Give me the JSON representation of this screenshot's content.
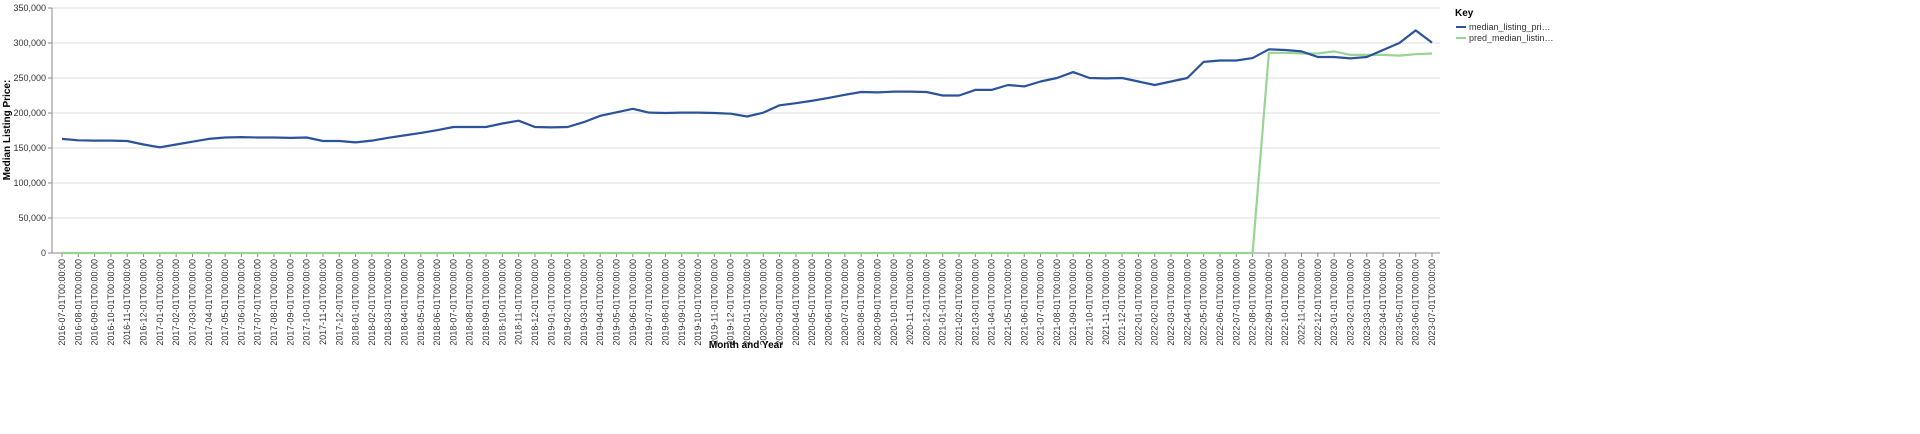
{
  "chart_data": {
    "type": "line",
    "y_label": "Median Listing Price:",
    "x_label": "Month and Year",
    "legend_title": "Key",
    "legend_position": "right",
    "grid": true,
    "categories": [
      "2016-07-01T00:00:00",
      "2016-08-01T00:00:00",
      "2016-09-01T00:00:00",
      "2016-10-01T00:00:00",
      "2016-11-01T00:00:00",
      "2016-12-01T00:00:00",
      "2017-01-01T00:00:00",
      "2017-02-01T00:00:00",
      "2017-03-01T00:00:00",
      "2017-04-01T00:00:00",
      "2017-05-01T00:00:00",
      "2017-06-01T00:00:00",
      "2017-07-01T00:00:00",
      "2017-08-01T00:00:00",
      "2017-09-01T00:00:00",
      "2017-10-01T00:00:00",
      "2017-11-01T00:00:00",
      "2017-12-01T00:00:00",
      "2018-01-01T00:00:00",
      "2018-02-01T00:00:00",
      "2018-03-01T00:00:00",
      "2018-04-01T00:00:00",
      "2018-05-01T00:00:00",
      "2018-06-01T00:00:00",
      "2018-07-01T00:00:00",
      "2018-08-01T00:00:00",
      "2018-09-01T00:00:00",
      "2018-10-01T00:00:00",
      "2018-11-01T00:00:00",
      "2018-12-01T00:00:00",
      "2019-01-01T00:00:00",
      "2019-02-01T00:00:00",
      "2019-03-01T00:00:00",
      "2019-04-01T00:00:00",
      "2019-05-01T00:00:00",
      "2019-06-01T00:00:00",
      "2019-07-01T00:00:00",
      "2019-08-01T00:00:00",
      "2019-09-01T00:00:00",
      "2019-10-01T00:00:00",
      "2019-11-01T00:00:00",
      "2019-12-01T00:00:00",
      "2020-01-01T00:00:00",
      "2020-02-01T00:00:00",
      "2020-03-01T00:00:00",
      "2020-04-01T00:00:00",
      "2020-05-01T00:00:00",
      "2020-06-01T00:00:00",
      "2020-07-01T00:00:00",
      "2020-08-01T00:00:00",
      "2020-09-01T00:00:00",
      "2020-10-01T00:00:00",
      "2020-11-01T00:00:00",
      "2020-12-01T00:00:00",
      "2021-01-01T00:00:00",
      "2021-02-01T00:00:00",
      "2021-03-01T00:00:00",
      "2021-04-01T00:00:00",
      "2021-05-01T00:00:00",
      "2021-06-01T00:00:00",
      "2021-07-01T00:00:00",
      "2021-08-01T00:00:00",
      "2021-09-01T00:00:00",
      "2021-10-01T00:00:00",
      "2021-11-01T00:00:00",
      "2021-12-01T00:00:00",
      "2022-01-01T00:00:00",
      "2022-02-01T00:00:00",
      "2022-03-01T00:00:00",
      "2022-04-01T00:00:00",
      "2022-05-01T00:00:00",
      "2022-06-01T00:00:00",
      "2022-07-01T00:00:00",
      "2022-08-01T00:00:00",
      "2022-09-01T00:00:00",
      "2022-10-01T00:00:00",
      "2022-11-01T00:00:00",
      "2022-12-01T00:00:00",
      "2023-01-01T00:00:00",
      "2023-02-01T00:00:00",
      "2023-03-01T00:00:00",
      "2023-04-01T00:00:00",
      "2023-05-01T00:00:00",
      "2023-06-01T00:00:00",
      "2023-07-01T00:00:00"
    ],
    "series": [
      {
        "name": "median_listing_pri…",
        "color": "#2a5399",
        "values": [
          163000,
          161000,
          160500,
          160500,
          160000,
          155000,
          151000,
          155000,
          159000,
          163000,
          165000,
          165500,
          165000,
          165000,
          164500,
          165000,
          160000,
          160000,
          158000,
          160500,
          164500,
          168000,
          171500,
          175500,
          180000,
          180000,
          180000,
          185000,
          189000,
          180000,
          179500,
          180000,
          187000,
          196000,
          201000,
          206000,
          200500,
          200000,
          200500,
          200500,
          200000,
          199000,
          195000,
          200500,
          211000,
          214000,
          217500,
          221500,
          226000,
          230000,
          229500,
          230500,
          230500,
          230000,
          225000,
          225000,
          233000,
          233000,
          240000,
          238000,
          245000,
          250000,
          258500,
          250000,
          249500,
          250000,
          245000,
          240000,
          245000,
          250000,
          273000,
          275000,
          275000,
          278500,
          291000,
          290000,
          288000,
          280000,
          280000,
          278000,
          280000,
          290000,
          300000,
          318000,
          300500
        ]
      },
      {
        "name": "pred_median_listin…",
        "color": "#98d594",
        "values": [
          0,
          0,
          0,
          0,
          0,
          0,
          0,
          0,
          0,
          0,
          0,
          0,
          0,
          0,
          0,
          0,
          0,
          0,
          0,
          0,
          0,
          0,
          0,
          0,
          0,
          0,
          0,
          0,
          0,
          0,
          0,
          0,
          0,
          0,
          0,
          0,
          0,
          0,
          0,
          0,
          0,
          0,
          0,
          0,
          0,
          0,
          0,
          0,
          0,
          0,
          0,
          0,
          0,
          0,
          0,
          0,
          0,
          0,
          0,
          0,
          0,
          0,
          0,
          0,
          0,
          0,
          0,
          0,
          0,
          0,
          0,
          0,
          0,
          0,
          286000,
          286000,
          285000,
          285000,
          288000,
          283000,
          283000,
          283000,
          282000,
          284000,
          285000
        ]
      }
    ],
    "ylim": [
      0,
      350000
    ],
    "yticks": [
      0,
      {
        "value": 50000,
        "label": "50,000"
      },
      {
        "value": 100000,
        "label": "100,000"
      },
      {
        "value": 150000,
        "label": "150,000"
      },
      {
        "value": 200000,
        "label": "200,000"
      },
      {
        "value": 250000,
        "label": "250,000"
      },
      {
        "value": 300000,
        "label": "300,000"
      },
      {
        "value": 350000,
        "label": "350,000"
      }
    ]
  }
}
